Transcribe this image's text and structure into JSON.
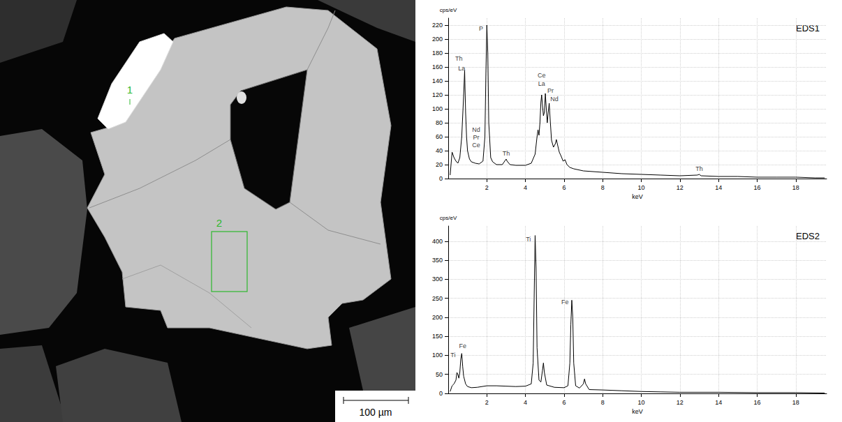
{
  "micrograph": {
    "labels": [
      "1",
      "2"
    ],
    "scale_bar": "100 µm"
  },
  "chart_data": [
    {
      "type": "line",
      "title": "EDS1",
      "xlabel": "keV",
      "ylabel": "cps/eV",
      "color": "#000000",
      "grid": true,
      "xlim": [
        0,
        19.6
      ],
      "xticks": [
        2,
        4,
        6,
        8,
        10,
        12,
        14,
        16,
        18
      ],
      "ylim": [
        0,
        230
      ],
      "yticks": [
        0,
        20,
        40,
        60,
        80,
        100,
        120,
        140,
        160,
        180,
        200,
        220
      ],
      "x": [
        0.1,
        0.2,
        0.3,
        0.4,
        0.5,
        0.6,
        0.7,
        0.8,
        0.85,
        0.9,
        0.95,
        1.0,
        1.1,
        1.2,
        1.4,
        1.6,
        1.8,
        1.9,
        1.95,
        2.0,
        2.05,
        2.1,
        2.2,
        2.3,
        2.5,
        2.8,
        2.95,
        3.0,
        3.05,
        3.2,
        3.5,
        4.0,
        4.3,
        4.5,
        4.6,
        4.65,
        4.7,
        4.75,
        4.8,
        4.84,
        4.88,
        4.93,
        4.98,
        5.03,
        5.08,
        5.13,
        5.18,
        5.23,
        5.28,
        5.35,
        5.45,
        5.55,
        5.6,
        5.65,
        5.75,
        5.85,
        5.95,
        6.05,
        6.15,
        6.3,
        6.5,
        7,
        8,
        9,
        10,
        11,
        12,
        12.9,
        13.0,
        13.1,
        14,
        15,
        16,
        17,
        18,
        19,
        19.5
      ],
      "values": [
        5,
        38,
        30,
        25,
        22,
        30,
        60,
        120,
        155,
        95,
        60,
        40,
        28,
        24,
        22,
        21,
        25,
        60,
        150,
        220,
        180,
        80,
        30,
        24,
        20,
        20,
        26,
        28,
        25,
        20,
        19,
        19,
        22,
        35,
        60,
        70,
        62,
        80,
        110,
        120,
        105,
        90,
        95,
        122,
        100,
        80,
        95,
        108,
        85,
        55,
        45,
        50,
        56,
        50,
        38,
        32,
        25,
        27,
        20,
        16,
        14,
        11,
        9,
        7,
        6,
        5,
        4,
        5,
        6,
        4,
        3,
        3,
        2,
        2,
        2,
        1,
        1
      ],
      "annotations": [
        {
          "text": "Th",
          "x": 0.55,
          "y": 172
        },
        {
          "text": "La",
          "x": 0.7,
          "y": 158
        },
        {
          "text": "Nd",
          "x": 1.45,
          "y": 70
        },
        {
          "text": "Pr",
          "x": 1.45,
          "y": 59
        },
        {
          "text": "Ce",
          "x": 1.45,
          "y": 48
        },
        {
          "text": "P",
          "x": 1.7,
          "y": 215
        },
        {
          "text": "Th",
          "x": 3.0,
          "y": 36
        },
        {
          "text": "Ce",
          "x": 4.84,
          "y": 148
        },
        {
          "text": "La",
          "x": 4.84,
          "y": 136
        },
        {
          "text": "Pr",
          "x": 5.3,
          "y": 126
        },
        {
          "text": "Nd",
          "x": 5.5,
          "y": 114
        },
        {
          "text": "Th",
          "x": 13.0,
          "y": 14
        }
      ]
    },
    {
      "type": "line",
      "title": "EDS2",
      "xlabel": "keV",
      "ylabel": "cps/eV",
      "color": "#000000",
      "grid": true,
      "xlim": [
        0,
        19.6
      ],
      "xticks": [
        2,
        4,
        6,
        8,
        10,
        12,
        14,
        16,
        18
      ],
      "ylim": [
        0,
        440
      ],
      "yticks": [
        0,
        50,
        100,
        150,
        200,
        250,
        300,
        350,
        400
      ],
      "x": [
        0.1,
        0.2,
        0.3,
        0.4,
        0.45,
        0.5,
        0.55,
        0.6,
        0.65,
        0.7,
        0.75,
        0.8,
        0.9,
        1.0,
        1.2,
        1.5,
        2,
        2.5,
        3,
        3.5,
        4,
        4.3,
        4.4,
        4.45,
        4.5,
        4.55,
        4.6,
        4.7,
        4.8,
        4.88,
        4.93,
        4.98,
        5.1,
        5.5,
        6,
        6.2,
        6.3,
        6.35,
        6.4,
        6.45,
        6.5,
        6.6,
        6.8,
        7.0,
        7.06,
        7.12,
        7.3,
        8,
        9,
        10,
        11,
        12,
        14,
        16,
        18,
        19.5
      ],
      "values": [
        5,
        20,
        25,
        35,
        55,
        50,
        40,
        55,
        90,
        105,
        70,
        45,
        25,
        18,
        15,
        16,
        20,
        20,
        19,
        18,
        19,
        25,
        80,
        250,
        415,
        330,
        120,
        35,
        30,
        60,
        80,
        55,
        22,
        16,
        15,
        20,
        80,
        180,
        245,
        200,
        80,
        20,
        14,
        25,
        38,
        25,
        10,
        9,
        7,
        5,
        4,
        3,
        3,
        2,
        2,
        1
      ],
      "annotations": [
        {
          "text": "Ti",
          "x": 0.25,
          "y": 100
        },
        {
          "text": "Fe",
          "x": 0.75,
          "y": 124
        },
        {
          "text": "Ti",
          "x": 4.15,
          "y": 405
        },
        {
          "text": "Fe",
          "x": 6.05,
          "y": 240
        }
      ]
    }
  ]
}
